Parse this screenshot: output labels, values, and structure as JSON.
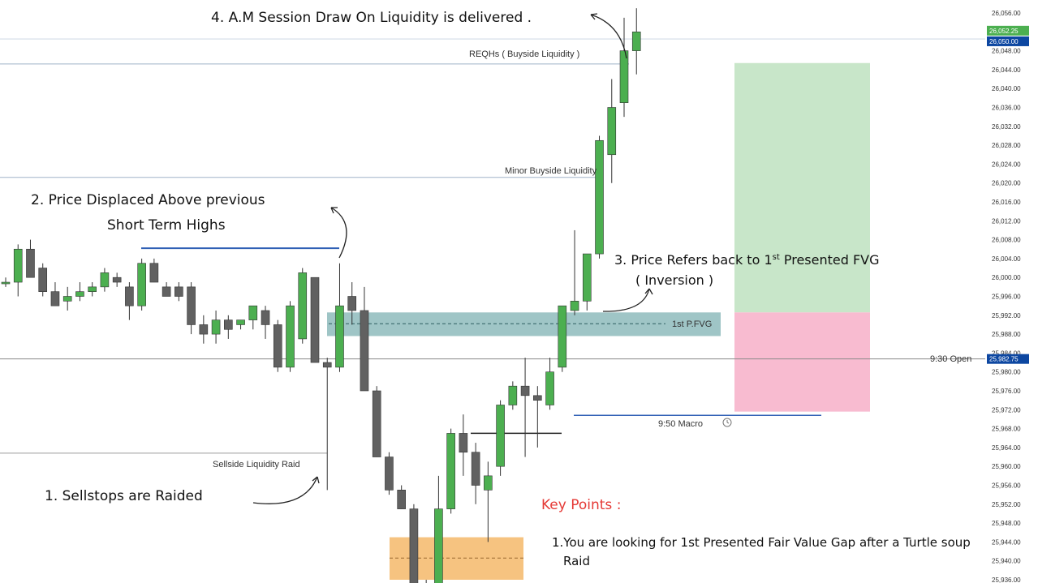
{
  "chart_data": {
    "type": "candlestick",
    "title": "",
    "xlabel": "",
    "ylabel": "",
    "ylim": [
      25934,
      26058
    ],
    "yticks": [
      "26,056.00",
      "26,052.00",
      "26,048.00",
      "26,044.00",
      "26,040.00",
      "26,036.00",
      "26,032.00",
      "26,028.00",
      "26,024.00",
      "26,020.00",
      "26,016.00",
      "26,012.00",
      "26,008.00",
      "26,004.00",
      "26,000.00",
      "25,996.00",
      "25,992.00",
      "25,988.00",
      "25,984.00",
      "25,980.00",
      "25,976.00",
      "25,972.00",
      "25,968.00",
      "25,964.00",
      "25,960.00",
      "25,956.00",
      "25,952.00",
      "25,948.00",
      "25,944.00",
      "25,940.00",
      "25,936.00"
    ],
    "price_tags": [
      {
        "label": "26,052.25",
        "value": 26052.25,
        "color": "#4caf50"
      },
      {
        "label": "26,050.00",
        "value": 26050.0,
        "color": "#0d47a1"
      },
      {
        "label": "25,982.75",
        "value": 25982.75,
        "color": "#0d47a1"
      }
    ],
    "candles": [
      {
        "o": 25999,
        "h": 26000,
        "l": 25998,
        "c": 25999
      },
      {
        "o": 25999,
        "h": 26007,
        "l": 25996,
        "c": 26006
      },
      {
        "o": 26006,
        "h": 26008,
        "l": 26000,
        "c": 26000
      },
      {
        "o": 26002,
        "h": 26003,
        "l": 25996,
        "c": 25997
      },
      {
        "o": 25997,
        "h": 25999,
        "l": 25994,
        "c": 25994
      },
      {
        "o": 25995,
        "h": 25998,
        "l": 25993,
        "c": 25996
      },
      {
        "o": 25996,
        "h": 25999,
        "l": 25995,
        "c": 25997
      },
      {
        "o": 25997,
        "h": 25999,
        "l": 25996,
        "c": 25998
      },
      {
        "o": 25998,
        "h": 26002,
        "l": 25997,
        "c": 26001
      },
      {
        "o": 26000,
        "h": 26001,
        "l": 25998,
        "c": 25999
      },
      {
        "o": 25998,
        "h": 25999,
        "l": 25991,
        "c": 25994
      },
      {
        "o": 25994,
        "h": 26004,
        "l": 25993,
        "c": 26003
      },
      {
        "o": 26003,
        "h": 26004,
        "l": 25999,
        "c": 25999
      },
      {
        "o": 25998,
        "h": 25999,
        "l": 25996,
        "c": 25996
      },
      {
        "o": 25998,
        "h": 25999,
        "l": 25995,
        "c": 25996
      },
      {
        "o": 25998,
        "h": 25999,
        "l": 25988,
        "c": 25990
      },
      {
        "o": 25990,
        "h": 25992,
        "l": 25986,
        "c": 25988
      },
      {
        "o": 25988,
        "h": 25993,
        "l": 25986,
        "c": 25991
      },
      {
        "o": 25991,
        "h": 25992,
        "l": 25987,
        "c": 25989
      },
      {
        "o": 25990,
        "h": 25991,
        "l": 25989,
        "c": 25991
      },
      {
        "o": 25991,
        "h": 25994,
        "l": 25989,
        "c": 25994
      },
      {
        "o": 25993,
        "h": 25994,
        "l": 25987,
        "c": 25990
      },
      {
        "o": 25990,
        "h": 25991,
        "l": 25980,
        "c": 25981
      },
      {
        "o": 25981,
        "h": 25995,
        "l": 25980,
        "c": 25994
      },
      {
        "o": 25987,
        "h": 26002,
        "l": 25986,
        "c": 26001
      },
      {
        "o": 26000,
        "h": 26000,
        "l": 25982,
        "c": 25982
      },
      {
        "o": 25982,
        "h": 25983,
        "l": 25955,
        "c": 25981
      },
      {
        "o": 25981,
        "h": 26003,
        "l": 25980,
        "c": 25994
      },
      {
        "o": 25996,
        "h": 25999,
        "l": 25990,
        "c": 25993
      },
      {
        "o": 25993,
        "h": 25998,
        "l": 25976,
        "c": 25976
      },
      {
        "o": 25976,
        "h": 25977,
        "l": 25962,
        "c": 25962
      },
      {
        "o": 25962,
        "h": 25963,
        "l": 25954,
        "c": 25955
      },
      {
        "o": 25955,
        "h": 25956,
        "l": 25951,
        "c": 25951
      },
      {
        "o": 25951,
        "h": 25952,
        "l": 25934,
        "c": 25935
      },
      {
        "o": 25935,
        "h": 25936,
        "l": 25934,
        "c": 25935
      },
      {
        "o": 25935,
        "h": 25958,
        "l": 25934,
        "c": 25951
      },
      {
        "o": 25951,
        "h": 25968,
        "l": 25950,
        "c": 25967
      },
      {
        "o": 25967,
        "h": 25971,
        "l": 25958,
        "c": 25963
      },
      {
        "o": 25963,
        "h": 25965,
        "l": 25952,
        "c": 25956
      },
      {
        "o": 25955,
        "h": 25961,
        "l": 25944,
        "c": 25958
      },
      {
        "o": 25960,
        "h": 25974,
        "l": 25958,
        "c": 25973
      },
      {
        "o": 25973,
        "h": 25978,
        "l": 25972,
        "c": 25977
      },
      {
        "o": 25977,
        "h": 25983,
        "l": 25962,
        "c": 25975
      },
      {
        "o": 25975,
        "h": 25977,
        "l": 25964,
        "c": 25974
      },
      {
        "o": 25973,
        "h": 25983,
        "l": 25972,
        "c": 25980
      },
      {
        "o": 25981,
        "h": 25994,
        "l": 25980,
        "c": 25994
      },
      {
        "o": 25993,
        "h": 26010,
        "l": 25992,
        "c": 25995
      },
      {
        "o": 25995,
        "h": 26005,
        "l": 25993,
        "c": 26005
      },
      {
        "o": 26005,
        "h": 26030,
        "l": 26004,
        "c": 26029
      },
      {
        "o": 26026,
        "h": 26042,
        "l": 26020,
        "c": 26036
      },
      {
        "o": 26037,
        "h": 26055,
        "l": 26034,
        "c": 26048
      },
      {
        "o": 26048,
        "h": 26057,
        "l": 26043,
        "c": 26052
      }
    ],
    "levels": {
      "reqhs": 26045.2,
      "minor_bsl": 26021.2,
      "short_term_high": 26006.2,
      "open_930": 25982.75,
      "sellside": 25962.8,
      "macro_950": 25970.8,
      "fvg_mid": 25990.2,
      "cross": 25967.0
    },
    "fvg_zone": [
      25987.6,
      25992.6
    ],
    "orange_zone": [
      25936.0,
      25945.0
    ],
    "risk_zone": [
      25971.6,
      25992.6
    ],
    "reward_zone": [
      25992.6,
      26045.4
    ]
  },
  "annotations": {
    "a4": "4. A.M Session Draw On Liquidity is delivered .",
    "a2_line1": "2. Price Displaced Above previous",
    "a2_line2": "Short Term Highs",
    "a3_line1": "3. Price Refers back to 1st Presented FVG",
    "a3_sup": "st",
    "a3_line2": "( Inversion )",
    "a1": "1. Sellstops are Raided",
    "reqhs": "REQHs ( Buyside Liquidity )",
    "minor_bsl": "Minor Buyside Liquidity",
    "fvg": "1st P.FVG",
    "open": "9:30 Open",
    "macro": "9:50 Macro",
    "sellside": "Sellside Liquidity Raid",
    "key_title": "Key Points :",
    "key1_line1": "1.You are looking for 1st Presented Fair Value Gap after a Turtle soup",
    "key1_line2": "Raid"
  },
  "colors": {
    "bull": "#4caf50",
    "bear": "#616161",
    "fvg": "#5f9ea0",
    "orange": "#f5b86a",
    "reward": "#c8e6c9",
    "risk": "#f8bbd0",
    "key": "#e53935",
    "axis_tag_blue": "#0d47a1"
  }
}
